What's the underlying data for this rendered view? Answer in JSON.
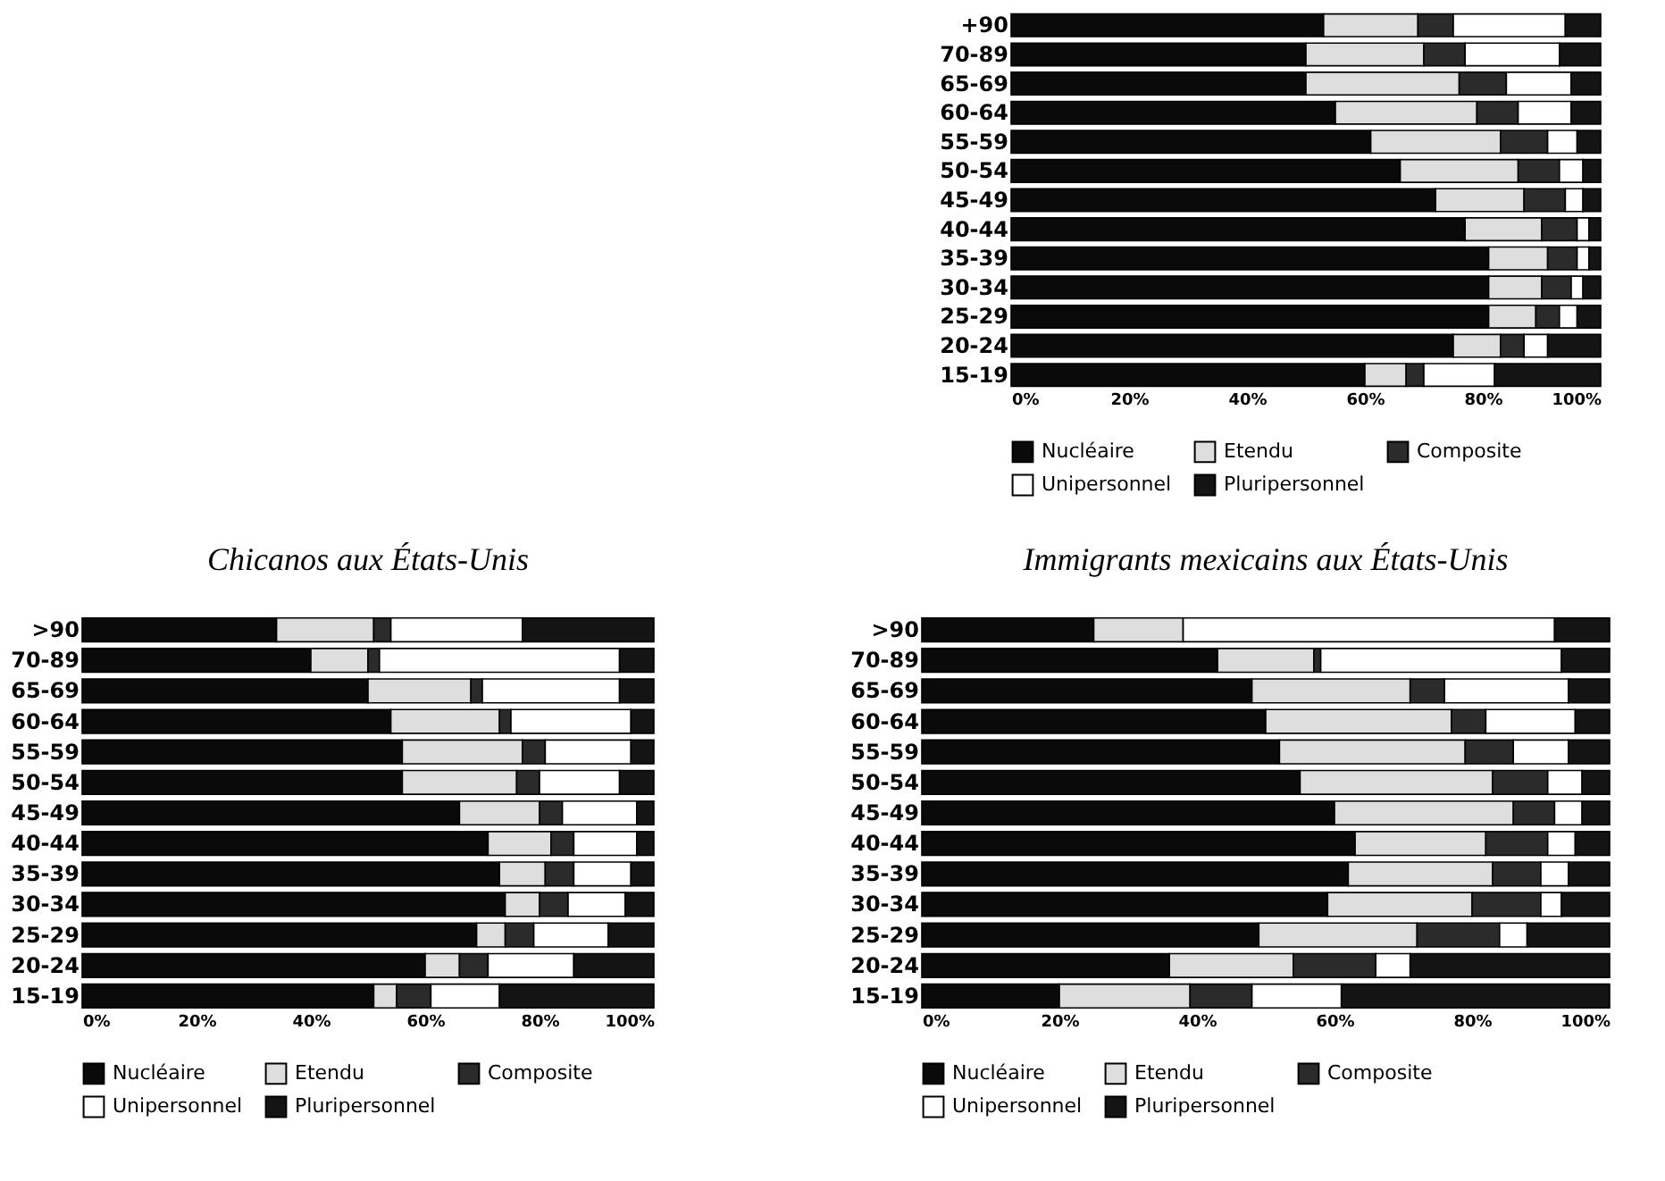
{
  "chart_data": [
    {
      "type": "bar",
      "orientation": "horizontal",
      "stacked": true,
      "legend": "bottom",
      "grid": false,
      "categories": [
        "+90",
        "70-89",
        "65-69",
        "60-64",
        "55-59",
        "50-54",
        "45-49",
        "40-44",
        "35-39",
        "30-34",
        "25-29",
        "20-24",
        "15-19"
      ],
      "xlim": [
        0,
        100
      ],
      "xticks": [
        {
          "value": 0,
          "label": "0%"
        },
        {
          "value": 20,
          "label": "20%"
        },
        {
          "value": 40,
          "label": "40%"
        },
        {
          "value": 60,
          "label": "60%"
        },
        {
          "value": 80,
          "label": "80%"
        },
        {
          "value": 100,
          "label": "100%"
        }
      ],
      "series": [
        {
          "name": "Nucléaire",
          "color": "#0a0a0a",
          "values": [
            53,
            50,
            50,
            55,
            61,
            66,
            72,
            77,
            81,
            81,
            81,
            75,
            60
          ]
        },
        {
          "name": "Etendu",
          "color": "#dedede",
          "values": [
            16,
            20,
            26,
            24,
            22,
            20,
            15,
            13,
            10,
            9,
            8,
            8,
            7
          ]
        },
        {
          "name": "Composite",
          "color": "#2b2b2b",
          "values": [
            6,
            7,
            8,
            7,
            8,
            7,
            7,
            6,
            5,
            5,
            4,
            4,
            3
          ]
        },
        {
          "name": "Unipersonnel",
          "color": "#ffffff",
          "values": [
            19,
            16,
            11,
            9,
            5,
            4,
            3,
            2,
            2,
            2,
            3,
            4,
            12
          ]
        },
        {
          "name": "Pluripersonnel",
          "color": "#141414",
          "values": [
            6,
            7,
            5,
            5,
            4,
            3,
            3,
            2,
            2,
            3,
            4,
            9,
            18
          ]
        }
      ]
    },
    {
      "type": "bar",
      "orientation": "horizontal",
      "stacked": true,
      "legend": "bottom",
      "grid": false,
      "title": "Chicanos aux États-Unis",
      "categories": [
        ">90",
        "70-89",
        "65-69",
        "60-64",
        "55-59",
        "50-54",
        "45-49",
        "40-44",
        "35-39",
        "30-34",
        "25-29",
        "20-24",
        "15-19"
      ],
      "xlim": [
        0,
        100
      ],
      "xticks": [
        {
          "value": 0,
          "label": "0%"
        },
        {
          "value": 20,
          "label": "20%"
        },
        {
          "value": 40,
          "label": "40%"
        },
        {
          "value": 60,
          "label": "60%"
        },
        {
          "value": 80,
          "label": "80%"
        },
        {
          "value": 100,
          "label": "100%"
        }
      ],
      "series": [
        {
          "name": "Nucléaire",
          "color": "#0a0a0a",
          "values": [
            34,
            40,
            50,
            54,
            56,
            56,
            66,
            71,
            73,
            74,
            69,
            60,
            51
          ]
        },
        {
          "name": "Etendu",
          "color": "#dedede",
          "values": [
            17,
            10,
            18,
            19,
            21,
            20,
            14,
            11,
            8,
            6,
            5,
            6,
            4
          ]
        },
        {
          "name": "Composite",
          "color": "#2b2b2b",
          "values": [
            3,
            2,
            2,
            2,
            4,
            4,
            4,
            4,
            5,
            5,
            5,
            5,
            6
          ]
        },
        {
          "name": "Unipersonnel",
          "color": "#ffffff",
          "values": [
            23,
            42,
            24,
            21,
            15,
            14,
            13,
            11,
            10,
            10,
            13,
            15,
            12
          ]
        },
        {
          "name": "Pluripersonnel",
          "color": "#141414",
          "values": [
            23,
            6,
            6,
            4,
            4,
            6,
            3,
            3,
            4,
            5,
            8,
            14,
            27
          ]
        }
      ]
    },
    {
      "type": "bar",
      "orientation": "horizontal",
      "stacked": true,
      "legend": "bottom",
      "grid": false,
      "title": "Immigrants mexicains aux États-Unis",
      "categories": [
        ">90",
        "70-89",
        "65-69",
        "60-64",
        "55-59",
        "50-54",
        "45-49",
        "40-44",
        "35-39",
        "30-34",
        "25-29",
        "20-24",
        "15-19"
      ],
      "xlim": [
        0,
        100
      ],
      "xticks": [
        {
          "value": 0,
          "label": "0%"
        },
        {
          "value": 20,
          "label": "20%"
        },
        {
          "value": 40,
          "label": "40%"
        },
        {
          "value": 60,
          "label": "60%"
        },
        {
          "value": 80,
          "label": "80%"
        },
        {
          "value": 100,
          "label": "100%"
        }
      ],
      "series": [
        {
          "name": "Nucléaire",
          "color": "#0a0a0a",
          "values": [
            25,
            43,
            48,
            50,
            52,
            55,
            60,
            63,
            62,
            59,
            49,
            36,
            20
          ]
        },
        {
          "name": "Etendu",
          "color": "#dedede",
          "values": [
            13,
            14,
            23,
            27,
            27,
            28,
            26,
            19,
            21,
            21,
            23,
            18,
            19
          ]
        },
        {
          "name": "Composite",
          "color": "#2b2b2b",
          "values": [
            0,
            1,
            5,
            5,
            7,
            8,
            6,
            9,
            7,
            10,
            12,
            12,
            9
          ]
        },
        {
          "name": "Unipersonnel",
          "color": "#ffffff",
          "values": [
            54,
            35,
            18,
            13,
            8,
            5,
            4,
            4,
            4,
            3,
            4,
            5,
            13
          ]
        },
        {
          "name": "Pluripersonnel",
          "color": "#141414",
          "values": [
            8,
            7,
            6,
            5,
            6,
            4,
            4,
            5,
            6,
            7,
            12,
            29,
            39
          ]
        }
      ]
    }
  ]
}
